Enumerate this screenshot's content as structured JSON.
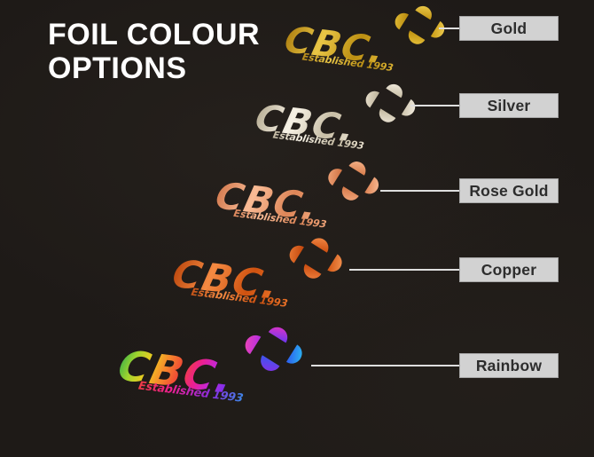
{
  "title": {
    "line1": "FOIL COLOUR",
    "line2": "OPTIONS"
  },
  "brand": {
    "wordmark": "CBC.",
    "registered": "®",
    "tagline": "Established 1993"
  },
  "colors": {
    "background": "#1e1a17",
    "title_text": "#ffffff",
    "label_box_bg": "#d2d2d2",
    "label_box_border": "#a6a6a6",
    "label_text": "#2d2d2d",
    "connector": "#dedede"
  },
  "options": [
    {
      "id": "gold",
      "label": "Gold",
      "base": "#cfa11c",
      "tagline_color": "#cf9f1d",
      "text_gradient": [
        "#ab7c0e",
        "#e9c646",
        "#bc8f12",
        "#e5bd3c"
      ],
      "icon": {
        "top": [
          "#f0d052",
          "#c29413"
        ],
        "left": [
          "#e7c23a",
          "#b5870c"
        ],
        "bottom": [
          "#eac53e",
          "#bd900e"
        ],
        "right": [
          "#f2d258",
          "#c89a14"
        ]
      }
    },
    {
      "id": "silver",
      "label": "Silver",
      "base": "#dcd3bd",
      "tagline_color": "#d8cfb8",
      "text_gradient": [
        "#b3a98f",
        "#f7f2e6",
        "#c8bea6",
        "#efe8d8"
      ],
      "icon": {
        "top": [
          "#f5efe3",
          "#c7bda4"
        ],
        "left": [
          "#ece4d2",
          "#bcb299"
        ],
        "bottom": [
          "#f0e9da",
          "#c2b89f"
        ],
        "right": [
          "#f8f3e8",
          "#ccc2aa"
        ]
      }
    },
    {
      "id": "rose-gold",
      "label": "Rose Gold",
      "base": "#ec9a6d",
      "tagline_color": "#ee9c6e",
      "text_gradient": [
        "#d1764a",
        "#f9bb95",
        "#dd8557",
        "#f4ad83"
      ],
      "icon": {
        "top": [
          "#f8b890",
          "#d87c4b"
        ],
        "left": [
          "#f3a97e",
          "#cf7243"
        ],
        "bottom": [
          "#f5ad83",
          "#d47747"
        ],
        "right": [
          "#fabf9a",
          "#dd8252"
        ]
      }
    },
    {
      "id": "copper",
      "label": "Copper",
      "base": "#e4611c",
      "tagline_color": "#ec6a24",
      "text_gradient": [
        "#b8440b",
        "#f58a42",
        "#cf5210",
        "#f07a2e"
      ],
      "icon": {
        "top": [
          "#f58f4c",
          "#cc4e0f"
        ],
        "left": [
          "#ee7e38",
          "#c2460b"
        ],
        "bottom": [
          "#f28442",
          "#c84a0d"
        ],
        "right": [
          "#f79a58",
          "#d25512"
        ]
      }
    },
    {
      "id": "rainbow",
      "label": "Rainbow",
      "base": "#e83a9e",
      "tagline_color": "#b03ae0",
      "text_gradient": [
        "#2fae4a",
        "#9fd42e",
        "#f0cc20",
        "#f6872c",
        "#ef4436",
        "#ec1f8f",
        "#c228dd",
        "#7a30ea",
        "#2f6fe8"
      ],
      "tagline_gradient": [
        "#ef4430",
        "#ec1f8f",
        "#8a2ce0",
        "#28a0e8"
      ],
      "icon": {
        "top": [
          "#ec32c0",
          "#6c38f0"
        ],
        "left": [
          "#f248ae",
          "#b52ce4"
        ],
        "bottom": [
          "#8c2ee4",
          "#3c55ee"
        ],
        "right": [
          "#2cc2f2",
          "#2c5cee"
        ]
      }
    }
  ]
}
